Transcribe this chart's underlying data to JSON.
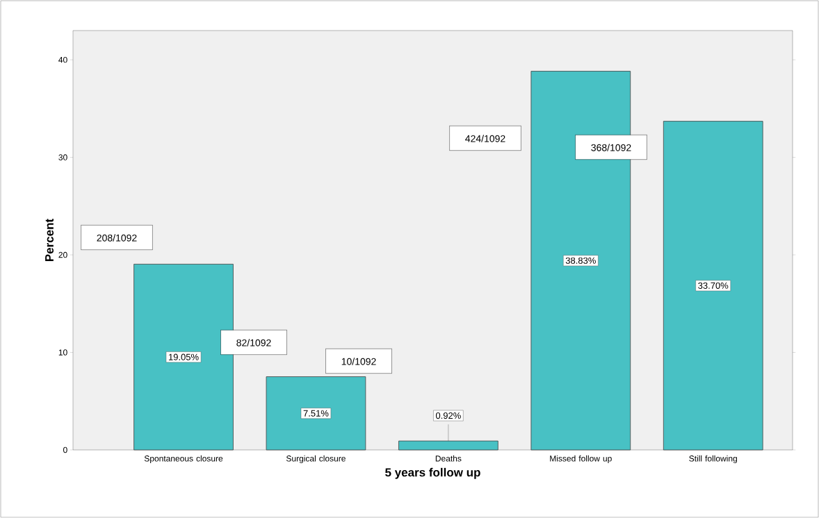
{
  "chart_data": {
    "type": "bar",
    "xlabel": "5 years follow up",
    "ylabel": "Percent",
    "categories": [
      "Spontaneous closure",
      "Surgical closure",
      "Deaths",
      "Missed follow up",
      "Still following"
    ],
    "values": [
      19.05,
      7.51,
      0.92,
      38.83,
      33.7
    ],
    "value_labels": [
      "19.05%",
      "7.51%",
      "0.92%",
      "38.83%",
      "33.70%"
    ],
    "color": "#48c1c4",
    "ylim": [
      0,
      43
    ],
    "yticks": [
      0,
      10,
      20,
      30,
      40
    ],
    "grid": false,
    "annotations": [
      "208/1092",
      "82/1092",
      "10/1092",
      "424/1092",
      "368/1092"
    ]
  }
}
